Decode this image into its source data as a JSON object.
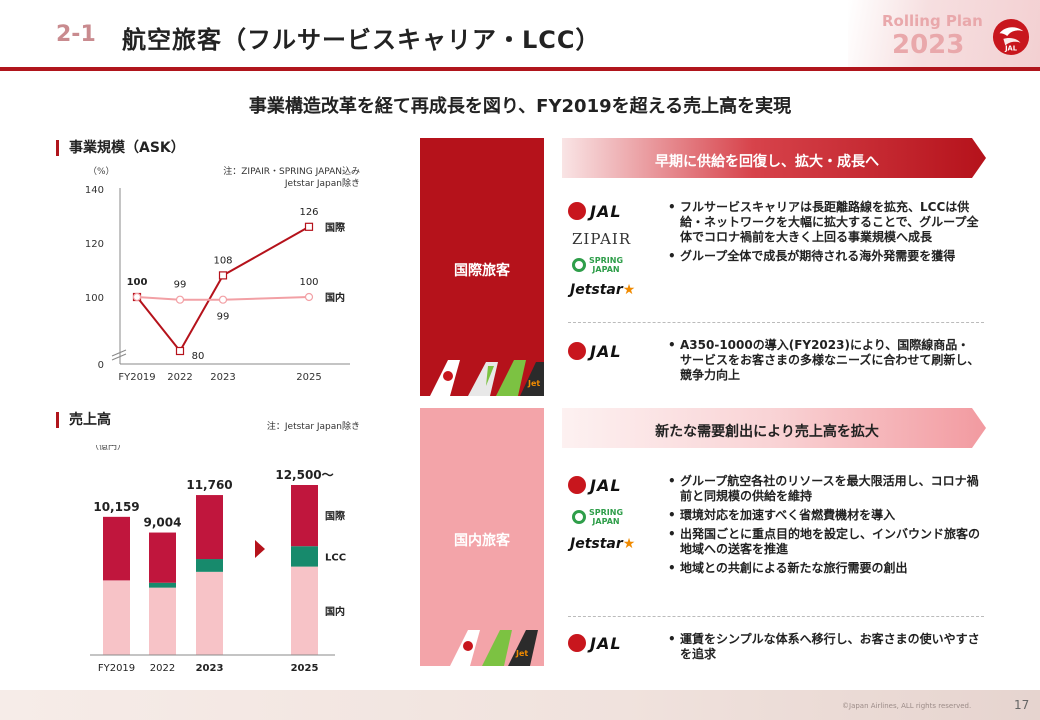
{
  "header": {
    "slide_number": "2-1",
    "title": "航空旅客（フルサービスキャリア・LCC）",
    "plan_line1": "Rolling Plan",
    "plan_line2": "2023",
    "brand_color": "#b0151c"
  },
  "headline": "事業構造改革を経て再成長を図り、FY2019を超える売上高を実現",
  "ask": {
    "section_title": "事業規模（ASK）",
    "note_line1": "注：ZIPAIR・SPRING JAPAN込み",
    "note_line2": "Jetstar Japan除き",
    "unit": "（%）"
  },
  "revenue": {
    "section_title": "売上高",
    "note": "注：Jetstar Japan除き",
    "unit": "（億円）"
  },
  "chart_data": [
    {
      "type": "line",
      "title": "事業規模（ASK）",
      "x": [
        "FY2019",
        "2022",
        "2023",
        "2025"
      ],
      "yticks": [
        0,
        100,
        120,
        140
      ],
      "ylim": [
        0,
        140
      ],
      "broken_axis": true,
      "series": [
        {
          "name": "国際",
          "values": [
            100,
            80,
            108,
            126
          ],
          "labels": [
            "100",
            "80",
            "108",
            "126"
          ],
          "color": "#b5121b"
        },
        {
          "name": "国内",
          "values": [
            100,
            99,
            99,
            100
          ],
          "labels": [
            "100",
            "99",
            "99",
            "100"
          ],
          "color": "#f2a0a5"
        }
      ]
    },
    {
      "type": "bar",
      "stacked": true,
      "title": "売上高",
      "categories": [
        "FY2019",
        "2022",
        "2023",
        "2025"
      ],
      "bold_categories": [
        "2023",
        "2025"
      ],
      "totals": [
        "10,159",
        "9,004",
        "11,760",
        "12,500～"
      ],
      "total_values": [
        10159,
        9004,
        11760,
        12500
      ],
      "series": [
        {
          "name": "国内",
          "share": [
            0.54,
            0.55,
            0.52,
            0.52
          ],
          "color": "#f7c3c7"
        },
        {
          "name": "LCC",
          "share": [
            0.0,
            0.04,
            0.08,
            0.12
          ],
          "color": "#178a6c"
        },
        {
          "name": "国際",
          "share": [
            0.46,
            0.41,
            0.4,
            0.36
          ],
          "color": "#c0163d"
        }
      ]
    }
  ],
  "international": {
    "label": "国際旅客",
    "banner": "早期に供給を回復し、拡大・成長へ",
    "bullets1": [
      "フルサービスキャリアは長距離路線を拡充、LCCは供給・ネットワークを大幅に拡大することで、グループ全体でコロナ禍前を大きく上回る事業規模へ成長",
      "グループ全体で成長が期待される海外発需要を獲得"
    ],
    "bullets2": [
      "A350-1000の導入(FY2023)により、国際線商品・サービスをお客さまの多様なニーズに合わせて刷新し、競争力向上"
    ],
    "color": "#b5121b"
  },
  "domestic": {
    "label": "国内旅客",
    "banner": "新たな需要創出により売上高を拡大",
    "bullets1": [
      "グループ航空各社のリソースを最大限活用し、コロナ禍前と同規模の供給を維持",
      "環境対応を加速すべく省燃費機材を導入",
      "出発国ごとに重点目的地を設定し、インバウンド旅客の地域への送客を推進",
      "地域との共創による新たな旅行需要の創出"
    ],
    "bullets2": [
      "運賃をシンプルな体系へ移行し、お客さまの使いやすさを追求"
    ],
    "color": "#f3a4a9"
  },
  "logos": {
    "jal": "JAL",
    "zipair": "ZIPAIR",
    "spring_line1": "SPRING",
    "spring_line2": "JAPAN",
    "jetstar": "Jetstar",
    "jetstar_star": "★"
  },
  "footer": {
    "copyright": "©Japan Airlines, ALL rights reserved.",
    "page_number": "17"
  }
}
